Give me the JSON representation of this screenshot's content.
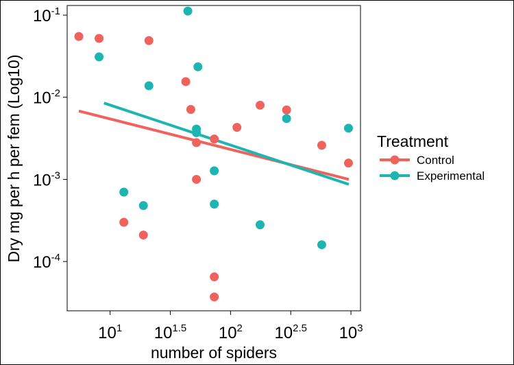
{
  "chart_data": {
    "type": "scatter",
    "title": "",
    "xlabel": "number of spiders",
    "ylabel": "Dry mg per h per fem (Log10)",
    "x_scale": "log10",
    "y_scale": "log10",
    "xlim": [
      4.4,
      1200
    ],
    "ylim": [
      2.51e-05,
      0.131
    ],
    "x_ticks": [
      {
        "value": 10,
        "base": "10",
        "exp": "1"
      },
      {
        "value": 31.6228,
        "base": "10",
        "exp": "1.5"
      },
      {
        "value": 100,
        "base": "10",
        "exp": "2"
      },
      {
        "value": 316.228,
        "base": "10",
        "exp": "2.5"
      },
      {
        "value": 1000,
        "base": "10",
        "exp": "3"
      }
    ],
    "y_ticks": [
      {
        "value": 0.0001,
        "base": "10",
        "exp": "-4"
      },
      {
        "value": 0.001,
        "base": "10",
        "exp": "-3"
      },
      {
        "value": 0.01,
        "base": "10",
        "exp": "-2"
      },
      {
        "value": 0.1,
        "base": "10",
        "exp": "-1"
      }
    ],
    "grid": false,
    "legend": {
      "title": "Treatment",
      "position": "right"
    },
    "series": [
      {
        "name": "Control",
        "color": "#F0635D",
        "points": [
          {
            "x": 5.5,
            "y": 0.055
          },
          {
            "x": 8.1,
            "y": 0.052
          },
          {
            "x": 13.0,
            "y": 0.0003
          },
          {
            "x": 18.9,
            "y": 0.00021
          },
          {
            "x": 21.0,
            "y": 0.049
          },
          {
            "x": 42.5,
            "y": 0.0155
          },
          {
            "x": 46.8,
            "y": 0.0071
          },
          {
            "x": 52.1,
            "y": 0.0028
          },
          {
            "x": 52.1,
            "y": 0.001
          },
          {
            "x": 73.3,
            "y": 0.0031
          },
          {
            "x": 73.3,
            "y": 6.5e-05
          },
          {
            "x": 73.3,
            "y": 3.7e-05
          },
          {
            "x": 113,
            "y": 0.0043
          },
          {
            "x": 176,
            "y": 0.008
          },
          {
            "x": 292,
            "y": 0.007
          },
          {
            "x": 572,
            "y": 0.0026
          },
          {
            "x": 954,
            "y": 0.00158
          }
        ],
        "trend": {
          "x": [
            5.5,
            960
          ],
          "y": [
            0.0068,
            0.001
          ]
        }
      },
      {
        "name": "Experimental",
        "color": "#1DB5B2",
        "points": [
          {
            "x": 8.1,
            "y": 0.031
          },
          {
            "x": 13.0,
            "y": 0.0007
          },
          {
            "x": 18.9,
            "y": 0.00048
          },
          {
            "x": 21.0,
            "y": 0.0138
          },
          {
            "x": 44.2,
            "y": 0.112
          },
          {
            "x": 52.1,
            "y": 0.0041
          },
          {
            "x": 52.1,
            "y": 0.0037
          },
          {
            "x": 53.6,
            "y": 0.0235
          },
          {
            "x": 73.3,
            "y": 0.00127
          },
          {
            "x": 73.3,
            "y": 0.0005
          },
          {
            "x": 176,
            "y": 0.00028
          },
          {
            "x": 292,
            "y": 0.0055
          },
          {
            "x": 572,
            "y": 0.00016
          },
          {
            "x": 954,
            "y": 0.0042
          }
        ],
        "trend": {
          "x": [
            8.9,
            960
          ],
          "y": [
            0.0085,
            0.00087
          ]
        }
      }
    ]
  }
}
